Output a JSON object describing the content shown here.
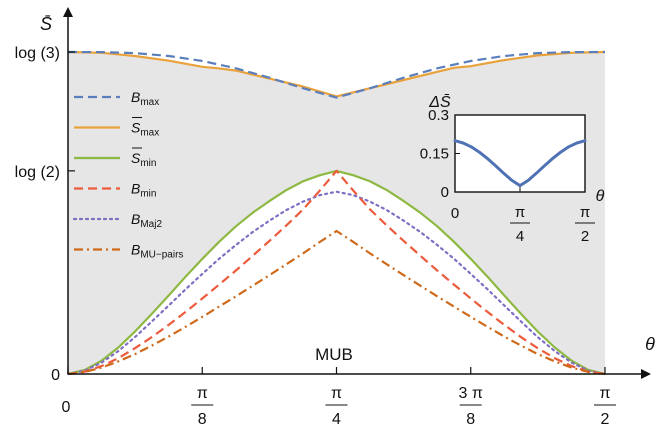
{
  "chart_data": {
    "type": "line",
    "ylabel": "S̄",
    "xlabel": "θ",
    "annotation": "MUB",
    "x_ticks": [
      {
        "x": 0,
        "num": "0",
        "den": ""
      },
      {
        "x": 0.3927,
        "num": "π",
        "den": "8"
      },
      {
        "x": 0.7854,
        "num": "π",
        "den": "4"
      },
      {
        "x": 1.1781,
        "num": "3 π",
        "den": "8"
      },
      {
        "x": 1.5708,
        "num": "π",
        "den": "2"
      }
    ],
    "y_ticks": [
      {
        "y": 0,
        "label": "0"
      },
      {
        "y": 0.6931,
        "label": "log (2)"
      },
      {
        "y": 1.0986,
        "label": "log (3)"
      }
    ],
    "xlim": [
      0,
      1.5708
    ],
    "ylim": [
      0,
      1.0986
    ],
    "shaded_region": "between S̄min and S̄max",
    "colors": {
      "Bmax": "#5b7fbc",
      "Smax": "#e9a23b",
      "Smin": "#8db842",
      "Bmin": "#ec5b3c",
      "BMaj2": "#7f6fc4",
      "BMUpairs": "#cf6a1a",
      "shade": "#e6e6e6",
      "inset": "#4f72b5"
    },
    "series": [
      {
        "key": "Bmax",
        "name": "B",
        "sub": "max",
        "overbar": false,
        "dash": "9,5",
        "x": [
          0,
          0.098,
          0.196,
          0.295,
          0.393,
          0.491,
          0.589,
          0.687,
          0.7854,
          0.884,
          0.982,
          1.08,
          1.178,
          1.276,
          1.374,
          1.473,
          1.5708
        ],
        "y": [
          1.0986,
          1.0982,
          1.095,
          1.085,
          1.068,
          1.043,
          1.011,
          0.975,
          0.943,
          0.975,
          1.011,
          1.043,
          1.068,
          1.085,
          1.095,
          1.0982,
          1.0986
        ]
      },
      {
        "key": "Smax",
        "name": "S",
        "sub": "max",
        "overbar": true,
        "dash": "",
        "x": [
          0,
          0.098,
          0.196,
          0.295,
          0.393,
          0.44,
          0.491,
          0.589,
          0.687,
          0.7854,
          0.884,
          0.982,
          1.08,
          1.131,
          1.178,
          1.276,
          1.374,
          1.473,
          1.5708
        ],
        "y": [
          1.0986,
          1.096,
          1.085,
          1.069,
          1.048,
          1.043,
          1.035,
          1.008,
          0.981,
          0.947,
          0.975,
          1.003,
          1.031,
          1.045,
          1.05,
          1.071,
          1.087,
          1.096,
          1.0986
        ]
      },
      {
        "key": "Smin",
        "name": "S",
        "sub": "min",
        "overbar": true,
        "dash": "",
        "x": [
          0,
          0.049,
          0.098,
          0.147,
          0.196,
          0.245,
          0.295,
          0.344,
          0.393,
          0.442,
          0.491,
          0.54,
          0.589,
          0.638,
          0.687,
          0.736,
          0.7854,
          0.835,
          0.884,
          0.933,
          0.982,
          1.031,
          1.08,
          1.129,
          1.178,
          1.227,
          1.276,
          1.325,
          1.374,
          1.424,
          1.473,
          1.522,
          1.5708
        ],
        "y": [
          0,
          0.0135,
          0.0455,
          0.0905,
          0.145,
          0.205,
          0.268,
          0.332,
          0.393,
          0.451,
          0.504,
          0.55,
          0.59,
          0.627,
          0.657,
          0.678,
          0.6931,
          0.678,
          0.657,
          0.627,
          0.59,
          0.55,
          0.504,
          0.451,
          0.393,
          0.332,
          0.268,
          0.205,
          0.145,
          0.0905,
          0.0455,
          0.0135,
          0
        ]
      },
      {
        "key": "Bmin",
        "name": "B",
        "sub": "min",
        "overbar": false,
        "dash": "9,5",
        "x": [
          0,
          0.049,
          0.098,
          0.147,
          0.196,
          0.245,
          0.295,
          0.344,
          0.393,
          0.442,
          0.491,
          0.54,
          0.589,
          0.638,
          0.687,
          0.736,
          0.7854,
          0.835,
          0.884,
          0.933,
          0.982,
          1.031,
          1.08,
          1.129,
          1.178,
          1.227,
          1.276,
          1.325,
          1.374,
          1.424,
          1.473,
          1.522,
          1.5708
        ],
        "y": [
          0,
          0.008,
          0.027,
          0.054,
          0.088,
          0.126,
          0.168,
          0.212,
          0.258,
          0.305,
          0.353,
          0.403,
          0.454,
          0.506,
          0.561,
          0.625,
          0.6931,
          0.625,
          0.561,
          0.506,
          0.454,
          0.403,
          0.353,
          0.305,
          0.258,
          0.212,
          0.168,
          0.126,
          0.088,
          0.054,
          0.027,
          0.008,
          0
        ]
      },
      {
        "key": "BMaj2",
        "name": "B",
        "sub": "Maj2",
        "overbar": false,
        "dash": "2,4",
        "x": [
          0,
          0.049,
          0.098,
          0.147,
          0.196,
          0.245,
          0.295,
          0.344,
          0.393,
          0.442,
          0.491,
          0.54,
          0.589,
          0.638,
          0.687,
          0.736,
          0.7854,
          0.835,
          0.884,
          0.933,
          0.982,
          1.031,
          1.08,
          1.129,
          1.178,
          1.227,
          1.276,
          1.325,
          1.374,
          1.424,
          1.473,
          1.522,
          1.5708
        ],
        "y": [
          0,
          0.011,
          0.039,
          0.078,
          0.126,
          0.179,
          0.234,
          0.289,
          0.342,
          0.393,
          0.44,
          0.484,
          0.523,
          0.559,
          0.588,
          0.61,
          0.622,
          0.61,
          0.588,
          0.559,
          0.523,
          0.484,
          0.44,
          0.393,
          0.342,
          0.289,
          0.234,
          0.179,
          0.126,
          0.078,
          0.039,
          0.011,
          0
        ]
      },
      {
        "key": "BMUpairs",
        "name": "B",
        "sub": "MU−pairs",
        "overbar": false,
        "dash": "9,4,2,4",
        "x": [
          0,
          0.049,
          0.098,
          0.147,
          0.196,
          0.245,
          0.295,
          0.344,
          0.393,
          0.442,
          0.491,
          0.54,
          0.589,
          0.638,
          0.687,
          0.736,
          0.7854,
          0.835,
          0.884,
          0.933,
          0.982,
          1.031,
          1.08,
          1.129,
          1.178,
          1.227,
          1.276,
          1.325,
          1.374,
          1.424,
          1.473,
          1.522,
          1.5708
        ],
        "y": [
          0,
          0.007,
          0.022,
          0.043,
          0.068,
          0.097,
          0.128,
          0.161,
          0.195,
          0.23,
          0.265,
          0.301,
          0.337,
          0.374,
          0.411,
          0.45,
          0.488,
          0.45,
          0.411,
          0.374,
          0.337,
          0.301,
          0.265,
          0.23,
          0.195,
          0.161,
          0.128,
          0.097,
          0.068,
          0.043,
          0.022,
          0.007,
          0
        ]
      }
    ],
    "inset": {
      "ylabel": "ΔS̄",
      "xlabel": "θ",
      "xlim": [
        0,
        1.5708
      ],
      "ylim": [
        0,
        0.3
      ],
      "y_ticks": [
        {
          "y": 0,
          "label": "0"
        },
        {
          "y": 0.15,
          "label": "0.15"
        },
        {
          "y": 0.3,
          "label": "0.3"
        }
      ],
      "x_ticks": [
        {
          "x": 0,
          "num": "0",
          "den": ""
        },
        {
          "x": 0.7854,
          "num": "π",
          "den": "4"
        },
        {
          "x": 1.5708,
          "num": "π",
          "den": "2"
        }
      ],
      "x": [
        0,
        0.098,
        0.196,
        0.295,
        0.393,
        0.491,
        0.589,
        0.687,
        0.7854,
        0.884,
        0.982,
        1.08,
        1.178,
        1.276,
        1.374,
        1.473,
        1.5708
      ],
      "y": [
        0.2,
        0.191,
        0.176,
        0.155,
        0.13,
        0.102,
        0.073,
        0.045,
        0.025,
        0.045,
        0.073,
        0.102,
        0.13,
        0.155,
        0.176,
        0.191,
        0.2
      ]
    }
  }
}
